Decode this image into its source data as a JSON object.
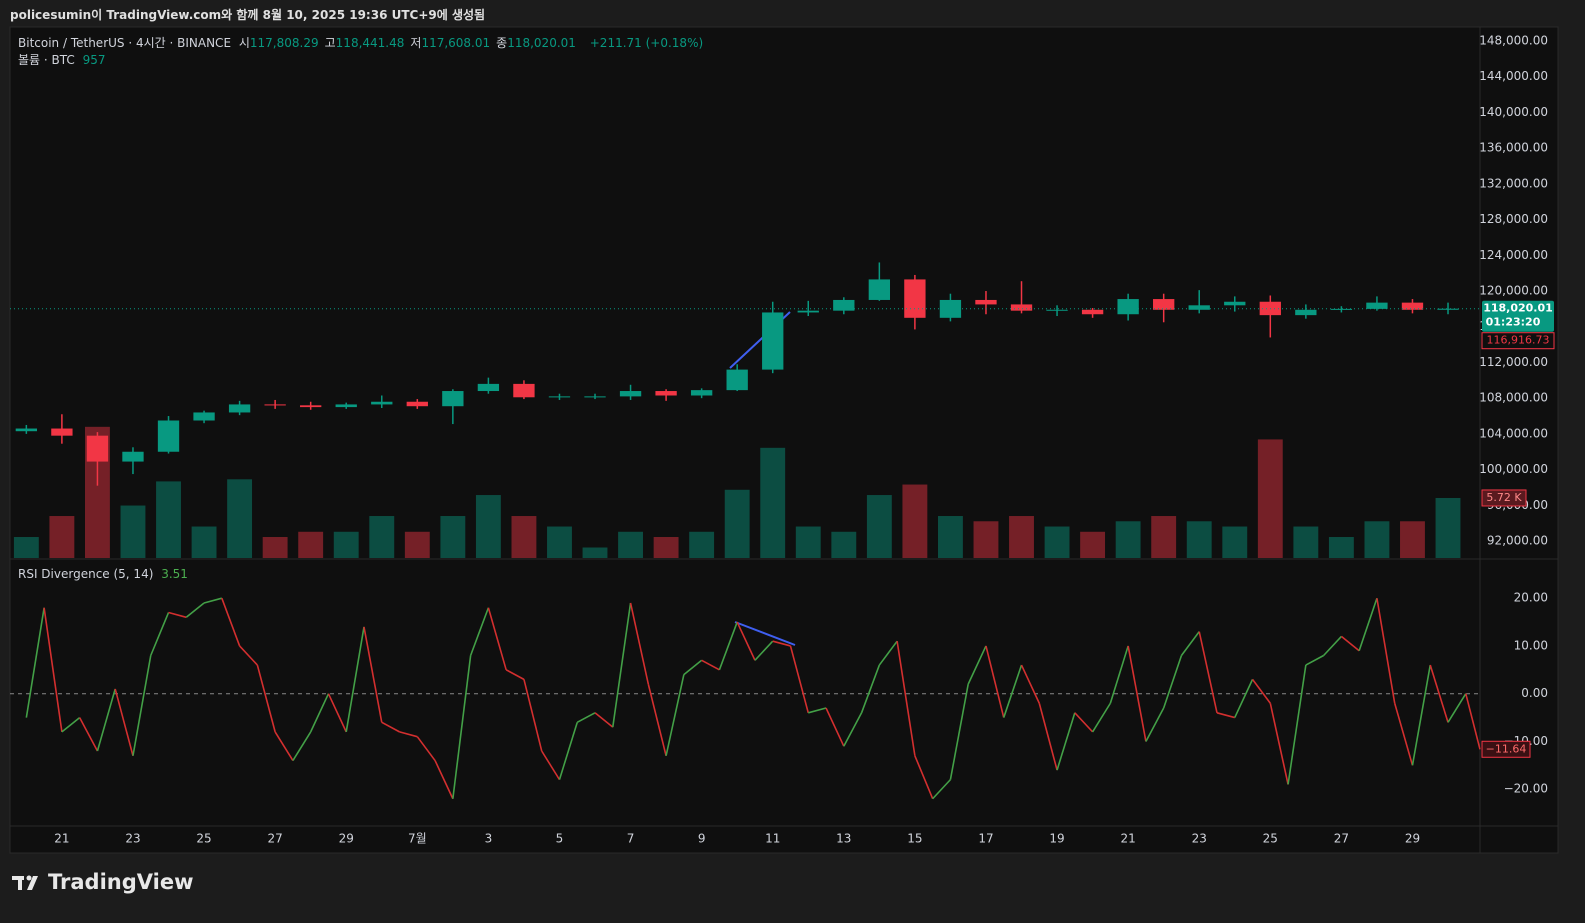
{
  "header": "policesumin이 TradingView.com와 함께 8월 10, 2025 19:36 UTC+9에 생성됨",
  "footer": "TradingView",
  "chart_data": [
    {
      "type": "candlestick",
      "title": "Bitcoin / TetherUS · 4시간 · BINANCE",
      "ohlc_labels": [
        {
          "name": "시",
          "value": "117,808.29"
        },
        {
          "name": "고",
          "value": "118,441.48"
        },
        {
          "name": "저",
          "value": "117,608.01"
        },
        {
          "name": "종",
          "value": "118,020.01"
        }
      ],
      "change": "+211.71 (+0.18%)",
      "x": [
        -1,
        0,
        1,
        2,
        3,
        4,
        5,
        6,
        7,
        8,
        9,
        10,
        11,
        12,
        13,
        14,
        15,
        16,
        17,
        18,
        19,
        20,
        21,
        22,
        23,
        24,
        25,
        26,
        27,
        28,
        29,
        30,
        31,
        32,
        33,
        34,
        35,
        36,
        37,
        38,
        39
      ],
      "open": [
        104300,
        104600,
        103800,
        100900,
        102000,
        105500,
        106400,
        107300,
        107200,
        107000,
        107300,
        107600,
        107100,
        108800,
        109600,
        108100,
        108200,
        108200,
        108800,
        108300,
        108900,
        111200,
        117600,
        117800,
        119000,
        121300,
        117000,
        119000,
        118500,
        117800,
        117900,
        117400,
        119100,
        117900,
        118400,
        118800,
        117300,
        117900,
        118000,
        118700,
        117900
      ],
      "high": [
        105000,
        106200,
        104200,
        102500,
        106000,
        106600,
        107700,
        107800,
        107600,
        107500,
        108300,
        107900,
        109000,
        110300,
        110000,
        108500,
        108500,
        109500,
        109000,
        109100,
        111800,
        118800,
        118900,
        119300,
        123200,
        121800,
        119700,
        120000,
        121100,
        118400,
        118100,
        119700,
        119700,
        120100,
        119400,
        119500,
        118500,
        118300,
        119400,
        119100,
        118700
      ],
      "low": [
        104000,
        102900,
        98200,
        99500,
        101800,
        105200,
        106100,
        106800,
        106700,
        106800,
        106900,
        106800,
        105100,
        108500,
        107900,
        107800,
        107900,
        107800,
        107700,
        108000,
        108800,
        110800,
        117200,
        117400,
        118900,
        115700,
        116600,
        117400,
        117500,
        117200,
        117000,
        116700,
        116500,
        117500,
        117700,
        114800,
        116900,
        117600,
        117800,
        117500,
        117400
      ],
      "close": [
        104600,
        103800,
        100900,
        102000,
        105500,
        106400,
        107300,
        107200,
        107000,
        107300,
        107600,
        107100,
        108800,
        109600,
        108100,
        108200,
        108200,
        108800,
        108300,
        108900,
        111200,
        117600,
        117800,
        119000,
        121300,
        117000,
        119000,
        118500,
        117800,
        117900,
        117400,
        119100,
        117900,
        118400,
        118800,
        117300,
        117900,
        118000,
        118700,
        117900,
        118020.01
      ],
      "up_color": "#089981",
      "down_color": "#f23645",
      "ylim": [
        90100,
        149570
      ],
      "yticks": [
        {
          "value": 92000,
          "label": "92,000.00"
        },
        {
          "value": 96000,
          "label": "96,000.00"
        },
        {
          "value": 100000,
          "label": "100,000.00"
        },
        {
          "value": 104000,
          "label": "104,000.00"
        },
        {
          "value": 108000,
          "label": "108,000.00"
        },
        {
          "value": 112000,
          "label": "112,000.00"
        },
        {
          "value": 116000,
          "label": "116,000.00"
        },
        {
          "value": 120000,
          "label": "120,000.00"
        },
        {
          "value": 124000,
          "label": "124,000.00"
        },
        {
          "value": 128000,
          "label": "128,000.00"
        },
        {
          "value": 132000,
          "label": "132,000.00"
        },
        {
          "value": 136000,
          "label": "136,000.00"
        },
        {
          "value": 140000,
          "label": "140,000.00"
        },
        {
          "value": 144000,
          "label": "144,000.00"
        },
        {
          "value": 148000,
          "label": "148,000.00"
        }
      ],
      "xlim": [
        -1.46,
        39.9
      ],
      "xticks": [
        {
          "value": 0,
          "label": "21"
        },
        {
          "value": 2,
          "label": "23"
        },
        {
          "value": 4,
          "label": "25"
        },
        {
          "value": 6,
          "label": "27"
        },
        {
          "value": 8,
          "label": "29"
        },
        {
          "value": 10,
          "label": "7월"
        },
        {
          "value": 12,
          "label": "3"
        },
        {
          "value": 14,
          "label": "5"
        },
        {
          "value": 16,
          "label": "7"
        },
        {
          "value": 18,
          "label": "9"
        },
        {
          "value": 20,
          "label": "11"
        },
        {
          "value": 22,
          "label": "13"
        },
        {
          "value": 24,
          "label": "15"
        },
        {
          "value": 26,
          "label": "17"
        },
        {
          "value": 28,
          "label": "19"
        },
        {
          "value": 30,
          "label": "21"
        },
        {
          "value": 32,
          "label": "23"
        },
        {
          "value": 34,
          "label": "25"
        },
        {
          "value": 36,
          "label": "27"
        },
        {
          "value": 38,
          "label": "29"
        }
      ],
      "last_price": {
        "value": 118020.01,
        "label": "118,020.01"
      },
      "countdown": "01:23:20",
      "marker": {
        "value": 116916.73,
        "label": "116,916.73"
      }
    },
    {
      "type": "bar",
      "title": "볼륨 · BTC",
      "legend_value": 957,
      "values": [
        2,
        4,
        12.5,
        5,
        7.3,
        3,
        7.5,
        2,
        2.5,
        2.5,
        4,
        2.5,
        4,
        6,
        4,
        3,
        1,
        2.5,
        2,
        2.5,
        6.5,
        10.5,
        3,
        2.5,
        6,
        7,
        4,
        3.5,
        4,
        3,
        2.5,
        3.5,
        4,
        3.5,
        3,
        11.3,
        3,
        2,
        3.5,
        3.5,
        5.72
      ],
      "ylim": [
        0,
        50.6
      ],
      "last": {
        "value": 5.72,
        "label": "5.72 K"
      }
    },
    {
      "type": "line",
      "title": "RSI Divergence (5, 14)",
      "legend_value": 3.51,
      "x": [
        -1,
        -0.5,
        0,
        0.5,
        1,
        1.5,
        2,
        2.5,
        3,
        3.5,
        4,
        4.5,
        5,
        5.5,
        6,
        6.5,
        7,
        7.5,
        8,
        8.5,
        9,
        9.5,
        10,
        10.5,
        11,
        11.5,
        12,
        12.5,
        13,
        13.5,
        14,
        14.5,
        15,
        15.5,
        16,
        16.5,
        17,
        17.5,
        18,
        18.5,
        19,
        19.5,
        20,
        20.5,
        21,
        21.5,
        22,
        22.5,
        23,
        23.5,
        24,
        24.5,
        25,
        25.5,
        26,
        26.5,
        27,
        27.5,
        28,
        28.5,
        29,
        29.5,
        30,
        30.5,
        31,
        31.5,
        32,
        32.5,
        33,
        33.5,
        34,
        34.5,
        35,
        35.5,
        36,
        36.5,
        37,
        37.5,
        38,
        38.5,
        39,
        39.5,
        39.9
      ],
      "values": [
        -5,
        18,
        -8,
        -5,
        -12,
        1,
        -13,
        8,
        17,
        16,
        19,
        20,
        10,
        6,
        -8,
        -14,
        -8,
        0,
        -8,
        14,
        -6,
        -8,
        -9,
        -14,
        -22,
        8,
        18,
        5,
        3,
        -12,
        -18,
        -6,
        -4,
        -7,
        19,
        2,
        -13,
        4,
        7,
        5,
        15,
        7,
        11,
        10,
        -4,
        -3,
        -11,
        -4,
        6,
        11,
        -13,
        -22,
        -18,
        2,
        10,
        -5,
        6,
        -2,
        -16,
        -4,
        -8,
        -2,
        10,
        -10,
        -3,
        8,
        13,
        -4,
        -5,
        3,
        -2,
        -19,
        6,
        8,
        12,
        9,
        20,
        -2,
        -15,
        6,
        -6,
        0,
        -11.64
      ],
      "last_label": "−11.64",
      "up_color": "#43a047",
      "down_color": "#d32f2f",
      "ylim": [
        -27.5,
        28
      ],
      "yticks": [
        {
          "value": 20,
          "label": "20.00"
        },
        {
          "value": 10,
          "label": "10.00"
        },
        {
          "value": 0,
          "label": "0.00"
        },
        {
          "value": -10,
          "label": "−10.00"
        },
        {
          "value": -20,
          "label": "−20.00"
        }
      ],
      "baseline": 0
    }
  ]
}
